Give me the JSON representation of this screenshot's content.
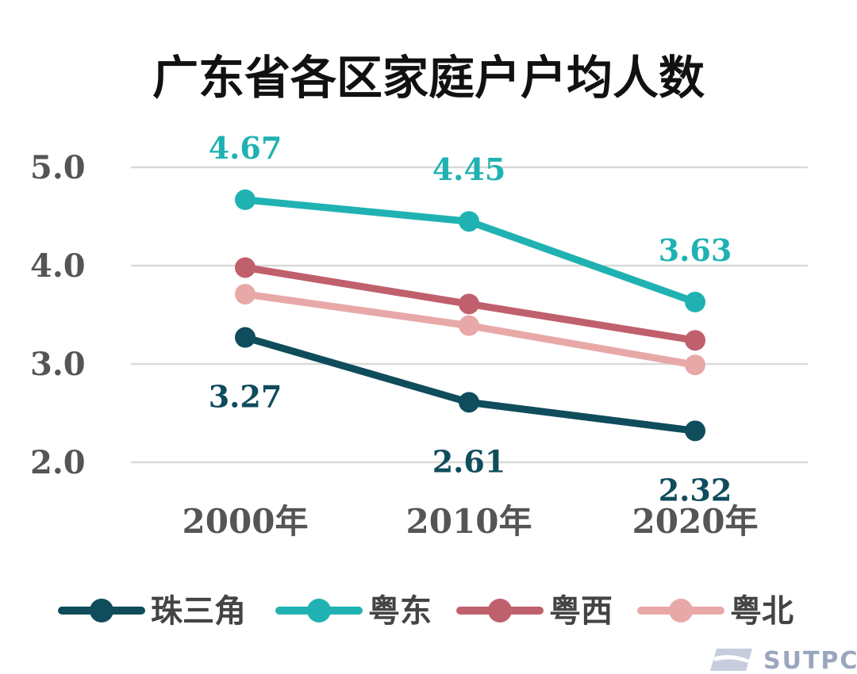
{
  "chart_data": {
    "type": "line",
    "title": "广东省各区家庭户户均人数",
    "categories": [
      "2000年",
      "2010年",
      "2020年"
    ],
    "y_ticks": [
      "2.0",
      "3.0",
      "4.0",
      "5.0"
    ],
    "ylim": [
      2.0,
      5.0
    ],
    "grid": true,
    "legend_position": "bottom",
    "series": [
      {
        "name": "珠三角",
        "color": "#0f4c5c",
        "values": [
          3.27,
          2.61,
          2.32
        ],
        "labels": [
          "3.27",
          "2.61",
          "2.32"
        ],
        "label_side": "below"
      },
      {
        "name": "粤东",
        "color": "#20b2b2",
        "values": [
          4.67,
          4.45,
          3.63
        ],
        "labels": [
          "4.67",
          "4.45",
          "3.63"
        ],
        "label_side": "above"
      },
      {
        "name": "粤西",
        "color": "#c0606c",
        "values": [
          3.98,
          3.61,
          3.24
        ],
        "labels": [],
        "label_side": "none"
      },
      {
        "name": "粤北",
        "color": "#e8a8a8",
        "values": [
          3.71,
          3.39,
          2.99
        ],
        "labels": [],
        "label_side": "none"
      }
    ]
  },
  "watermark": {
    "text": "SUTPC"
  }
}
